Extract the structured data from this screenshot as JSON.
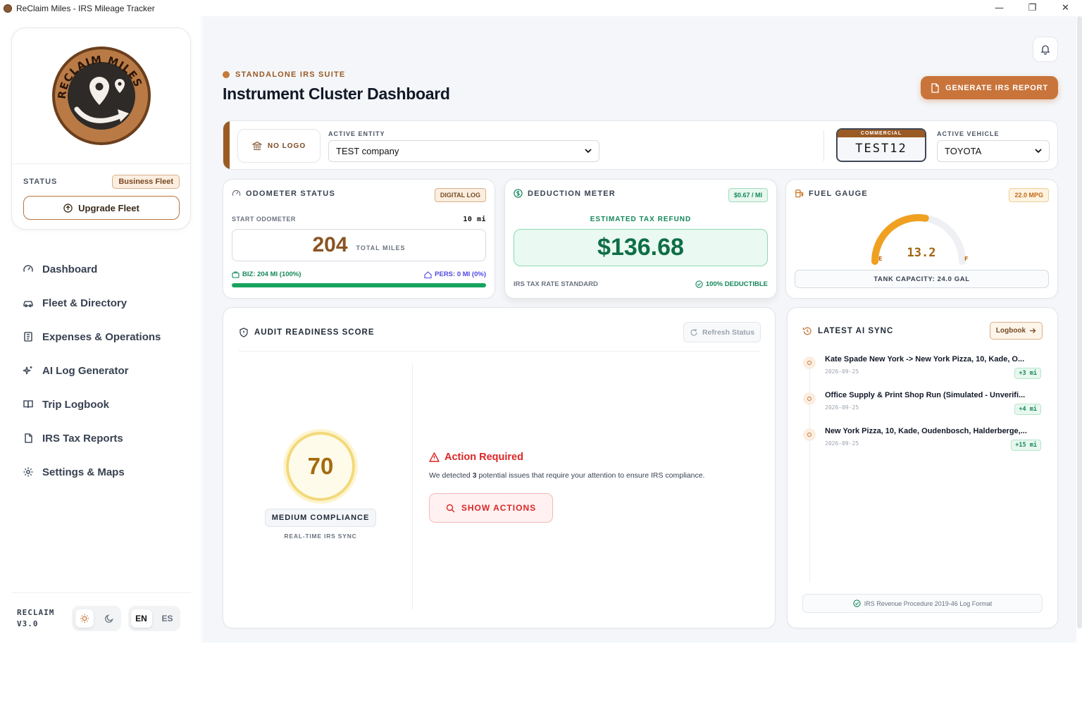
{
  "window": {
    "title": "ReClaim Miles - IRS Mileage Tracker",
    "minimize": "—",
    "restore": "❐",
    "close": "✕"
  },
  "brand": {
    "logo_text": "RECLAIM MILES",
    "status_label": "STATUS",
    "plan_badge": "Business Fleet",
    "upgrade_label": "Upgrade Fleet"
  },
  "nav": {
    "items": [
      {
        "label": "Dashboard",
        "icon": "gauge-icon"
      },
      {
        "label": "Fleet & Directory",
        "icon": "car-icon"
      },
      {
        "label": "Expenses & Operations",
        "icon": "receipt-icon"
      },
      {
        "label": "AI Log Generator",
        "icon": "sparkles-icon"
      },
      {
        "label": "Trip Logbook",
        "icon": "book-icon"
      },
      {
        "label": "IRS Tax Reports",
        "icon": "document-icon"
      },
      {
        "label": "Settings & Maps",
        "icon": "gear-icon"
      }
    ]
  },
  "footer": {
    "version_line1": "RECLAIM",
    "version_line2": "V3.0",
    "lang_en": "EN",
    "lang_es": "ES",
    "active_lang": "EN",
    "active_theme": "light"
  },
  "header": {
    "eyebrow": "STANDALONE IRS SUITE",
    "title": "Instrument Cluster Dashboard",
    "report_button": "GENERATE IRS REPORT"
  },
  "entity": {
    "nologo_label": "NO LOGO",
    "entity_label": "ACTIVE ENTITY",
    "entity_value": "TEST company",
    "plate_type": "COMMERCIAL",
    "plate_number": "TEST12",
    "vehicle_label": "ACTIVE VEHICLE",
    "vehicle_value": "TOYOTA"
  },
  "odometer": {
    "title": "ODOMETER STATUS",
    "badge": "DIGITAL LOG",
    "start_label": "START ODOMETER",
    "start_value": "10 mi",
    "total": "204",
    "total_unit": "TOTAL MILES",
    "biz_label": "BIZ: 204 MI (100%)",
    "pers_label": "PERS: 0 MI (0%)",
    "biz_percent": 100
  },
  "deduction": {
    "title": "DEDUCTION METER",
    "rate_badge": "$0.67 / MI",
    "sub_label": "ESTIMATED TAX REFUND",
    "amount": "$136.68",
    "rate_label": "IRS TAX RATE STANDARD",
    "deductible_label": "100% DEDUCTIBLE"
  },
  "fuel": {
    "title": "FUEL GAUGE",
    "mpg_badge": "22.0 MPG",
    "value": "13.2",
    "fraction": 0.55,
    "empty_mark": "E",
    "full_mark": "F",
    "tank_label": "TANK CAPACITY: 24.0 GAL"
  },
  "audit": {
    "title": "AUDIT READINESS SCORE",
    "refresh_label": "Refresh Status",
    "score": "70",
    "compliance": "MEDIUM COMPLIANCE",
    "realtime": "REAL-TIME IRS SYNC",
    "action_title": "Action Required",
    "action_text_before": "We detected ",
    "action_count": "3",
    "action_text_after": " potential issues that require your attention to ensure IRS compliance.",
    "show_actions": "SHOW ACTIONS"
  },
  "sync": {
    "title": "LATEST AI SYNC",
    "logbook_label": "Logbook",
    "items": [
      {
        "name": "Kate Spade New York -> New York Pizza, 10, Kade, O...",
        "date": "2026-09-25",
        "miles": "+3 mi"
      },
      {
        "name": "Office Supply & Print Shop Run (Simulated - Unverifi...",
        "date": "2026-09-25",
        "miles": "+4 mi"
      },
      {
        "name": "New York Pizza, 10, Kade, Oudenbosch, Halderberge,...",
        "date": "2026-09-25",
        "miles": "+15 mi"
      }
    ],
    "footer": "IRS Revenue Procedure 2019-46 Log Format"
  },
  "colors": {
    "brand": "#9a5a24",
    "accent": "#c9743a",
    "green": "#13875a",
    "danger": "#dc2626",
    "gauge": "#f0a020"
  }
}
